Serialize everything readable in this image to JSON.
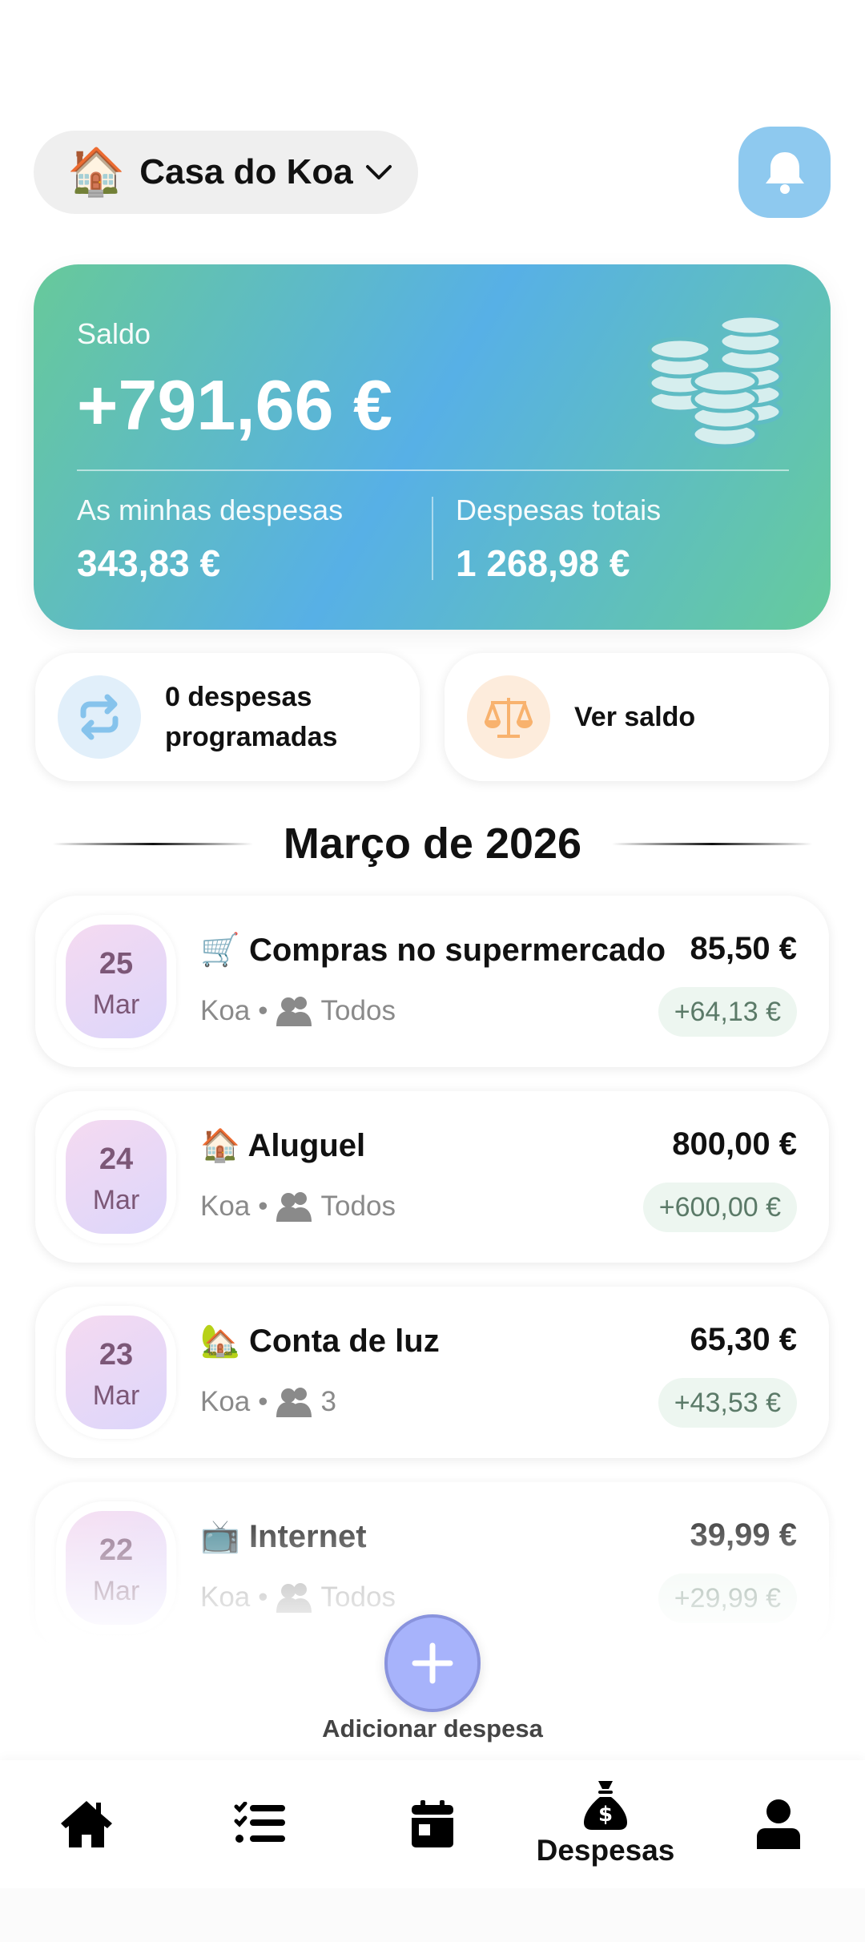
{
  "header": {
    "house_emoji": "🏠",
    "house_name": "Casa do Koa",
    "bell_icon": "bell-icon"
  },
  "balance": {
    "label": "Saldo",
    "value": "+791,66 €",
    "my_expenses_label": "As minhas despesas",
    "my_expenses_value": "343,83 €",
    "total_label": "Despesas totais",
    "total_value": "1 268,98 €"
  },
  "actions": [
    {
      "label": "0 despesas programadas",
      "icon": "repeat-icon"
    },
    {
      "label": "Ver saldo",
      "icon": "scale-icon"
    }
  ],
  "month_title": "Março de 2026",
  "expenses": [
    {
      "day": "25",
      "month": "Mar",
      "emoji": "🛒",
      "title": "Compras no supermercado",
      "amount": "85,50 €",
      "payer": "Koa",
      "participants": "Todos",
      "share": "+64,13 €"
    },
    {
      "day": "24",
      "month": "Mar",
      "emoji": "🏠",
      "title": "Aluguel",
      "amount": "800,00 €",
      "payer": "Koa",
      "participants": "Todos",
      "share": "+600,00 €"
    },
    {
      "day": "23",
      "month": "Mar",
      "emoji": "🏡",
      "title": "Conta de luz",
      "amount": "65,30 €",
      "payer": "Koa",
      "participants": "3",
      "share": "+43,53 €"
    },
    {
      "day": "22",
      "month": "Mar",
      "emoji": "📺",
      "title": "Internet",
      "amount": "39,99 €",
      "payer": "Koa",
      "participants": "Todos",
      "share": "+29,99 €"
    }
  ],
  "fab": {
    "label": "Adicionar despesa"
  },
  "nav": {
    "items": [
      {
        "icon": "home-icon",
        "label": ""
      },
      {
        "icon": "checklist-icon",
        "label": ""
      },
      {
        "icon": "calendar-icon",
        "label": ""
      },
      {
        "icon": "money-bag-icon",
        "label": "Despesas",
        "active": true
      },
      {
        "icon": "user-icon",
        "label": ""
      }
    ]
  },
  "colors": {
    "card_green": "#67c99a",
    "card_blue": "#57b0e6",
    "bell_bg": "#8ec9ef",
    "fab": "#a7b3fb",
    "date_text": "#7c5777",
    "share_bg": "#edf6f0"
  }
}
